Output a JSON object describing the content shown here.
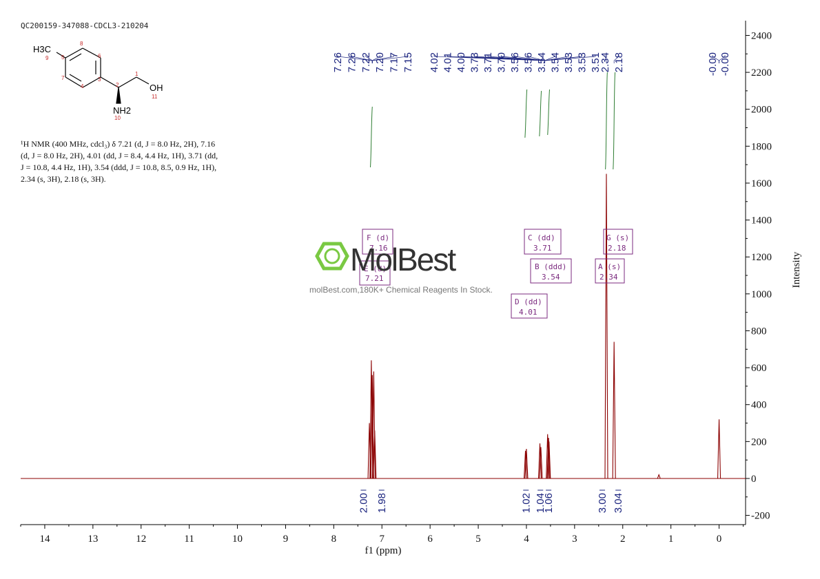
{
  "header": {
    "sample_id": "QC200159-347088-CDCL3-210204"
  },
  "description": {
    "lines": [
      "¹H NMR (400 MHz, cdcl₃) δ 7.21 (d, J = 8.0 Hz, 2H), 7.16",
      "(d, J = 8.0 Hz, 2H), 4.01 (dd, J = 8.4, 4.4 Hz, 1H), 3.71 (dd,",
      "J = 10.8, 4.4 Hz, 1H), 3.54 (ddd, J = 10.8, 8.5, 0.9 Hz, 1H),",
      "2.34 (s, 3H), 2.18 (s, 3H)."
    ]
  },
  "structure": {
    "labels": {
      "ch3": "H3C",
      "oh": "OH",
      "nh2": "NH2"
    },
    "atom_numbers": [
      "9",
      "5",
      "8",
      "6",
      "7",
      "4",
      "3",
      "2",
      "1",
      "11",
      "10"
    ]
  },
  "watermark": {
    "brand": "MolBest",
    "tagline": "molBest.com,180K+ Chemical Reagents In Stock."
  },
  "chart_data": {
    "type": "line",
    "xlabel": "f1 (ppm)",
    "ylabel": "Intensity",
    "xlim": [
      14.5,
      -0.55
    ],
    "ylim": [
      -250,
      2480
    ],
    "x_ticks": [
      14,
      13,
      12,
      11,
      10,
      9,
      8,
      7,
      6,
      5,
      4,
      3,
      2,
      1,
      0
    ],
    "y_ticks": [
      -200,
      0,
      200,
      400,
      600,
      800,
      1000,
      1200,
      1400,
      1600,
      1800,
      2000,
      2200,
      2400
    ],
    "peaks": [
      {
        "ppm": 7.26,
        "height": 300
      },
      {
        "ppm": 7.22,
        "height": 640
      },
      {
        "ppm": 7.2,
        "height": 560
      },
      {
        "ppm": 7.17,
        "height": 580
      },
      {
        "ppm": 7.15,
        "height": 260
      },
      {
        "ppm": 4.02,
        "height": 150
      },
      {
        "ppm": 4.0,
        "height": 160
      },
      {
        "ppm": 3.72,
        "height": 190
      },
      {
        "ppm": 3.7,
        "height": 170
      },
      {
        "ppm": 3.56,
        "height": 240
      },
      {
        "ppm": 3.54,
        "height": 220
      },
      {
        "ppm": 3.53,
        "height": 200
      },
      {
        "ppm": 2.34,
        "height": 1650
      },
      {
        "ppm": 2.18,
        "height": 740
      },
      {
        "ppm": 1.25,
        "height": 20
      },
      {
        "ppm": 0.0,
        "height": 320
      }
    ],
    "peak_labels": [
      "7.26",
      "7.26",
      "7.22",
      "7.20",
      "7.17",
      "7.15",
      "4.02",
      "4.01",
      "4.00",
      "3.73",
      "3.71",
      "3.70",
      "3.56",
      "3.56",
      "3.54",
      "3.54",
      "3.53",
      "3.53",
      "3.51",
      "2.34",
      "2.18",
      "-0.00",
      "-0.00"
    ],
    "multiplets": [
      {
        "label": "F (d)",
        "shift": "7.16"
      },
      {
        "label": "E (d)",
        "shift": "7.21"
      },
      {
        "label": "C (dd)",
        "shift": "3.71"
      },
      {
        "label": "B (ddd)",
        "shift": "3.54"
      },
      {
        "label": "D (dd)",
        "shift": "4.01"
      },
      {
        "label": "G (s)",
        "shift": "2.18"
      },
      {
        "label": "A (s)",
        "shift": "2.34"
      }
    ],
    "integrals": [
      {
        "ppm": 7.24,
        "value": "2.00"
      },
      {
        "ppm": 7.15,
        "value": "1.98"
      },
      {
        "ppm": 4.01,
        "value": "1.02"
      },
      {
        "ppm": 3.71,
        "value": "1.04"
      },
      {
        "ppm": 3.54,
        "value": "1.06"
      },
      {
        "ppm": 2.34,
        "value": "3.00"
      },
      {
        "ppm": 2.18,
        "value": "3.04"
      }
    ],
    "colors": {
      "spectrum": "#8b0000",
      "peak_labels": "#1a237e",
      "integral_curve": "#2e7d32",
      "multiplet_box": "#7b2a7f",
      "watermark_green": "#7ac943"
    },
    "grid": false
  }
}
